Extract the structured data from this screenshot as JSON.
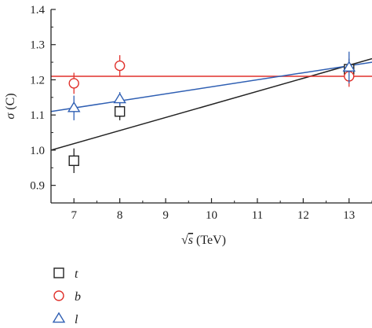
{
  "chart_data": {
    "type": "scatter",
    "xlabel_prefix": "√",
    "xlabel_var": "s",
    "xlabel_unit": " (TeV)",
    "ylabel_var": "σ",
    "ylabel_unit": " (C)",
    "xlim": [
      6.5,
      13.5
    ],
    "ylim": [
      0.85,
      1.4
    ],
    "x_ticks": [
      7,
      8,
      9,
      10,
      11,
      12,
      13
    ],
    "y_ticks": [
      0.9,
      1.0,
      1.1,
      1.2,
      1.3,
      1.4
    ],
    "y_tick_labels": [
      "0.9",
      "1.0",
      "1.1",
      "1.2",
      "1.3",
      "1.4"
    ],
    "grid": false,
    "legend_position": "bottom-left",
    "series": [
      {
        "name": "t",
        "marker": "square",
        "color": "#222222",
        "points": [
          {
            "x": 7,
            "y": 0.97,
            "err": 0.035
          },
          {
            "x": 8,
            "y": 1.11,
            "err": 0.025
          },
          {
            "x": 13,
            "y": 1.23,
            "err": 0.03
          }
        ],
        "fit": {
          "x": [
            6.5,
            13.5
          ],
          "y": [
            1.0,
            1.26
          ]
        }
      },
      {
        "name": "b",
        "marker": "circle",
        "color": "#e0312b",
        "points": [
          {
            "x": 7,
            "y": 1.19,
            "err": 0.03
          },
          {
            "x": 8,
            "y": 1.24,
            "err": 0.03
          },
          {
            "x": 13,
            "y": 1.21,
            "err": 0.03
          }
        ],
        "fit": {
          "x": [
            6.5,
            13.5
          ],
          "y": [
            1.21,
            1.21
          ]
        }
      },
      {
        "name": "l",
        "marker": "triangle",
        "color": "#2f5fb3",
        "points": [
          {
            "x": 7,
            "y": 1.12,
            "err": 0.035
          },
          {
            "x": 8,
            "y": 1.145,
            "err": 0.02
          },
          {
            "x": 13,
            "y": 1.235,
            "err": 0.045
          }
        ],
        "fit": {
          "x": [
            6.5,
            13.5
          ],
          "y": [
            1.11,
            1.25
          ]
        }
      }
    ]
  }
}
